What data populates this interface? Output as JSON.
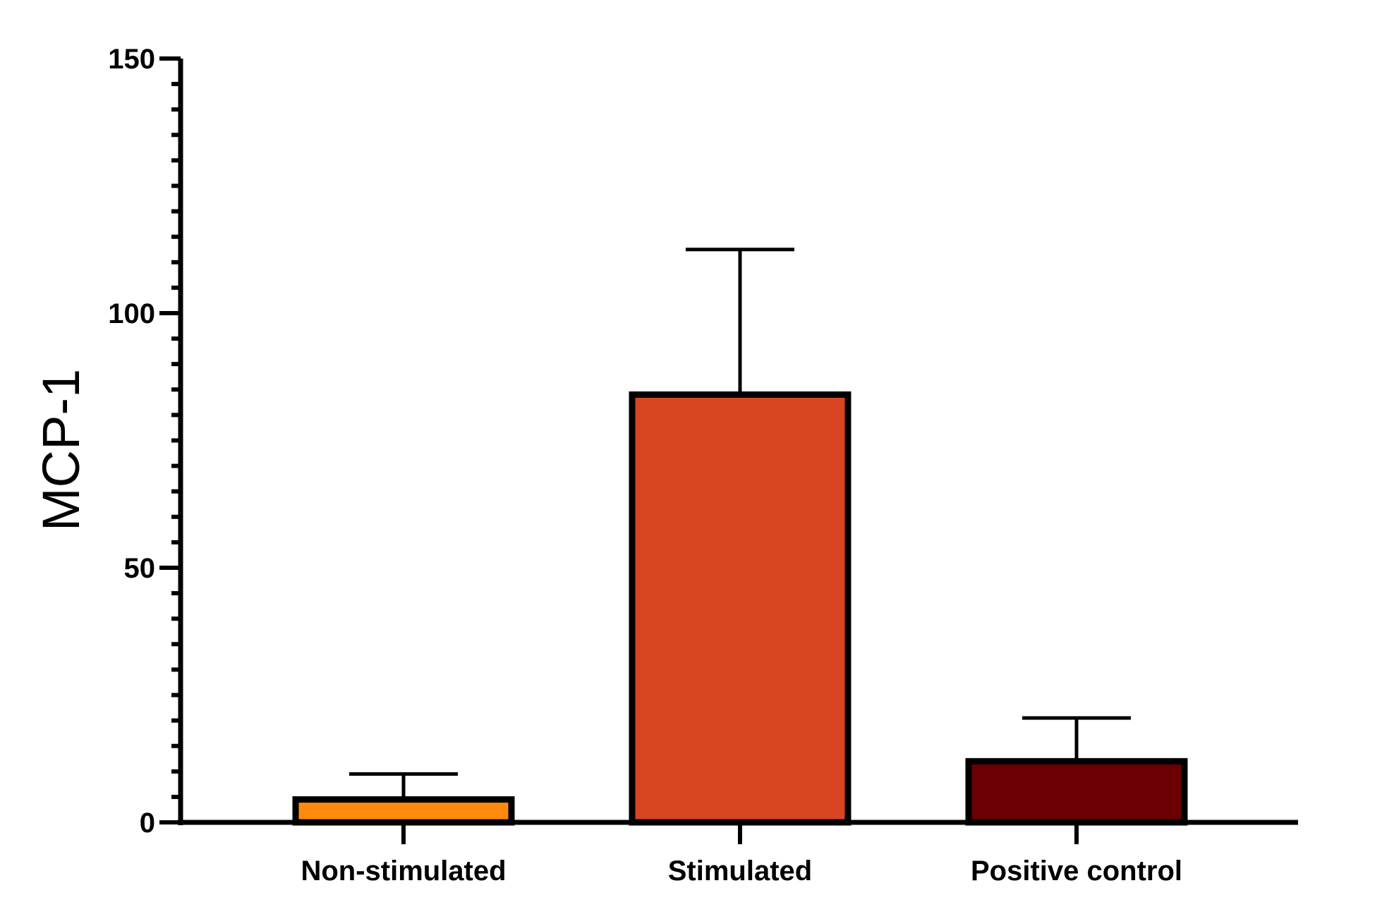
{
  "chart_data": {
    "type": "bar",
    "title": "",
    "xlabel": "",
    "ylabel": "MCP-1",
    "ylim": [
      0,
      150
    ],
    "yticks": [
      0,
      50,
      100,
      150
    ],
    "minor_tick_step": 5,
    "categories": [
      "Non-stimulated",
      "Stimulated",
      "Positive control"
    ],
    "values": [
      4.5,
      84,
      12
    ],
    "error_upper": [
      9.5,
      112.5,
      20.5
    ],
    "colors": [
      "#ff8a0c",
      "#d84521",
      "#6a0002"
    ]
  }
}
